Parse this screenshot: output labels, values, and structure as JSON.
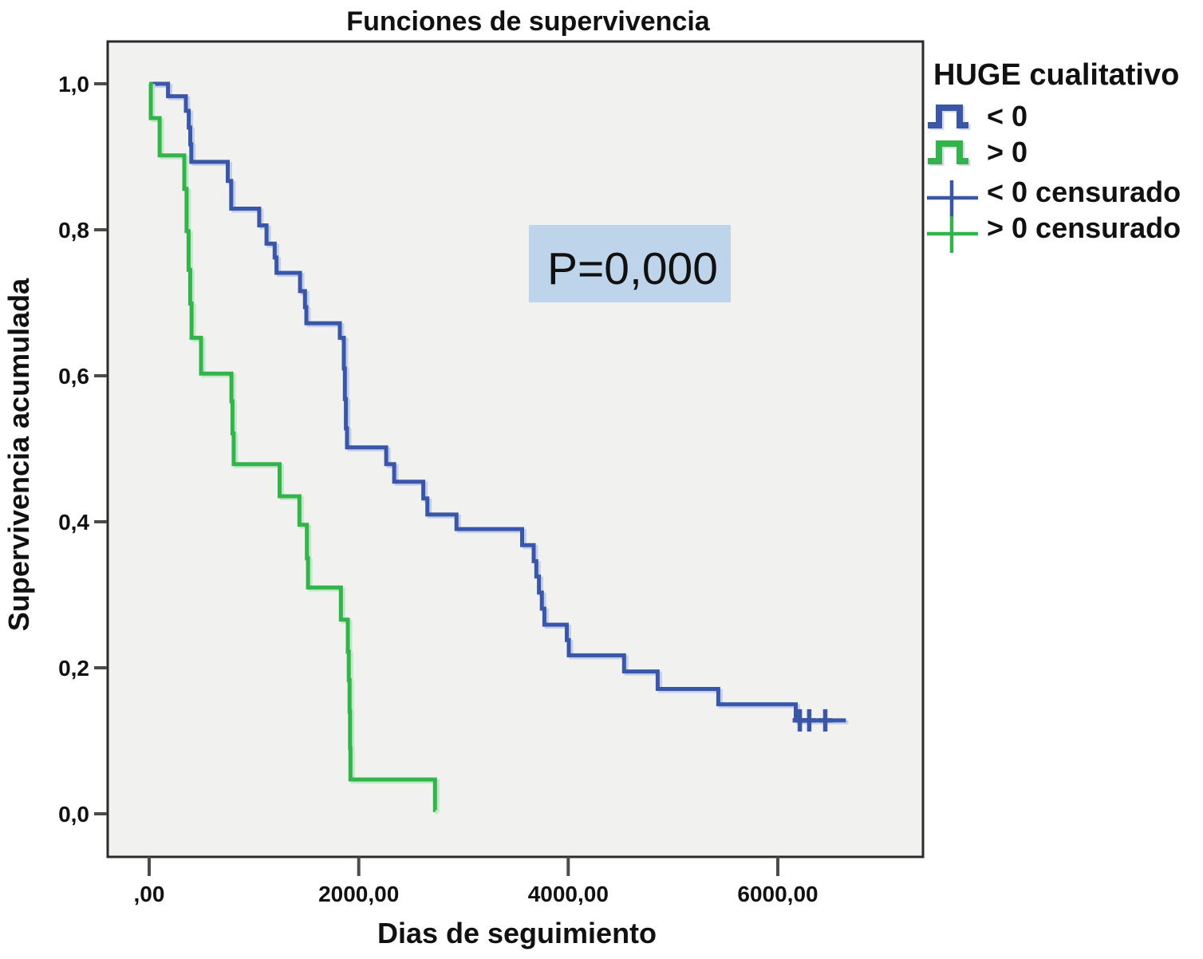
{
  "chart_data": {
    "type": "line",
    "subtype": "kaplan-meier-step",
    "title": "Funciones de supervivencia",
    "xlabel": "Dias de seguimiento",
    "ylabel": "Supervivencia acumulada",
    "xlim": [
      -400,
      7400
    ],
    "ylim": [
      -0.06,
      1.06
    ],
    "grid": false,
    "plot_bg": "#f1f1ef",
    "plot_border": "#2b2b2b",
    "x_ticks": [
      {
        "value": 0,
        "label": ",00"
      },
      {
        "value": 2000,
        "label": "2000,00"
      },
      {
        "value": 4000,
        "label": "4000,00"
      },
      {
        "value": 6000,
        "label": "6000,00"
      }
    ],
    "y_ticks": [
      {
        "value": 0.0,
        "label": "0,0"
      },
      {
        "value": 0.2,
        "label": "0,2"
      },
      {
        "value": 0.4,
        "label": "0,4"
      },
      {
        "value": 0.6,
        "label": "0,6"
      },
      {
        "value": 0.8,
        "label": "0,8"
      },
      {
        "value": 1.0,
        "label": "1,0"
      }
    ],
    "legend": {
      "title": "HUGE cualitativo",
      "position": "right",
      "entries": [
        {
          "label": "< 0",
          "type": "step",
          "color": "#3a56a6"
        },
        {
          "label": "> 0",
          "type": "step",
          "color": "#33b44a"
        },
        {
          "label": "< 0 censurado",
          "type": "censor",
          "color": "#3a56a6"
        },
        {
          "label": "> 0 censurado",
          "type": "censor",
          "color": "#33b44a"
        }
      ]
    },
    "annotation": {
      "text": "P=0,000",
      "bg": "#bdd4ea"
    },
    "series": [
      {
        "name": "< 0",
        "color": "#3a56a6",
        "shadow": "#bcc9ea",
        "steps": [
          [
            0,
            1.0
          ],
          [
            180,
            0.983
          ],
          [
            350,
            0.963
          ],
          [
            378,
            0.94
          ],
          [
            392,
            0.917
          ],
          [
            402,
            0.893
          ],
          [
            750,
            0.867
          ],
          [
            783,
            0.829
          ],
          [
            1050,
            0.806
          ],
          [
            1120,
            0.781
          ],
          [
            1198,
            0.762
          ],
          [
            1215,
            0.741
          ],
          [
            1440,
            0.716
          ],
          [
            1487,
            0.694
          ],
          [
            1500,
            0.672
          ],
          [
            1820,
            0.652
          ],
          [
            1858,
            0.61
          ],
          [
            1868,
            0.568
          ],
          [
            1878,
            0.528
          ],
          [
            1888,
            0.502
          ],
          [
            2262,
            0.479
          ],
          [
            2338,
            0.455
          ],
          [
            2616,
            0.432
          ],
          [
            2655,
            0.41
          ],
          [
            2933,
            0.39
          ],
          [
            3560,
            0.368
          ],
          [
            3670,
            0.346
          ],
          [
            3695,
            0.325
          ],
          [
            3720,
            0.303
          ],
          [
            3748,
            0.281
          ],
          [
            3772,
            0.259
          ],
          [
            3986,
            0.238
          ],
          [
            4005,
            0.217
          ],
          [
            4533,
            0.195
          ],
          [
            4853,
            0.171
          ],
          [
            5432,
            0.15
          ],
          [
            6171,
            0.128
          ]
        ],
        "censored_days": [
          6210,
          6300,
          6453
        ],
        "end_day": 6650
      },
      {
        "name": "> 0",
        "color": "#33b44a",
        "shadow": "#b9e8c2",
        "steps": [
          [
            0,
            1.0
          ],
          [
            15,
            0.953
          ],
          [
            100,
            0.902
          ],
          [
            335,
            0.856
          ],
          [
            357,
            0.798
          ],
          [
            376,
            0.745
          ],
          [
            391,
            0.699
          ],
          [
            404,
            0.652
          ],
          [
            495,
            0.603
          ],
          [
            785,
            0.565
          ],
          [
            795,
            0.521
          ],
          [
            806,
            0.479
          ],
          [
            1245,
            0.435
          ],
          [
            1434,
            0.396
          ],
          [
            1505,
            0.35
          ],
          [
            1516,
            0.31
          ],
          [
            1830,
            0.266
          ],
          [
            1896,
            0.222
          ],
          [
            1905,
            0.183
          ],
          [
            1913,
            0.14
          ],
          [
            1917,
            0.09
          ],
          [
            1921,
            0.047
          ],
          [
            2728,
            0.005
          ]
        ],
        "censored_days": [],
        "end_day": 2732
      }
    ]
  }
}
